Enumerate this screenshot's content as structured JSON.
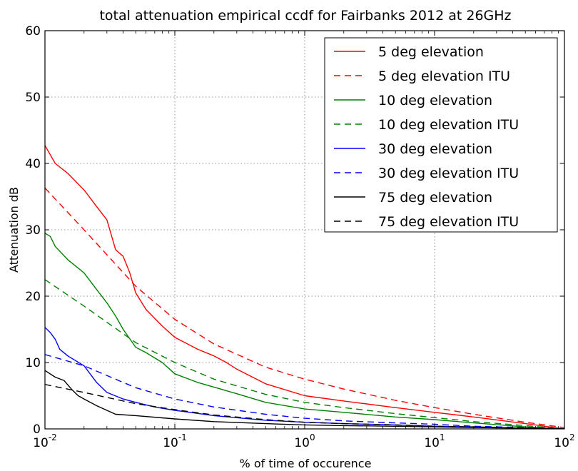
{
  "chart_data": {
    "type": "line",
    "title": "total attenuation empirical ccdf for Fairbanks 2012 at 26GHz",
    "xlabel": "% of time of occurence",
    "ylabel": "Attenuation dB",
    "xscale": "log",
    "xlim": [
      0.01,
      100
    ],
    "ylim": [
      0,
      60
    ],
    "grid": true,
    "legend_position": "top-right",
    "x_ticks": [
      {
        "value": 0.01,
        "base": "10",
        "exp": "-2"
      },
      {
        "value": 0.1,
        "base": "10",
        "exp": "-1"
      },
      {
        "value": 1,
        "base": "10",
        "exp": "0"
      },
      {
        "value": 10,
        "base": "10",
        "exp": "1"
      },
      {
        "value": 100,
        "base": "10",
        "exp": "2"
      }
    ],
    "y_ticks": [
      0,
      10,
      20,
      30,
      40,
      50,
      60
    ],
    "series": [
      {
        "name": "5 deg elevation",
        "color": "#ff0000",
        "dash": "solid",
        "x": [
          0.01,
          0.012,
          0.015,
          0.02,
          0.025,
          0.03,
          0.035,
          0.04,
          0.045,
          0.05,
          0.06,
          0.08,
          0.1,
          0.15,
          0.2,
          0.25,
          0.3,
          0.5,
          1,
          2,
          5,
          10,
          20,
          50,
          100
        ],
        "y": [
          42.7,
          40,
          38.5,
          36,
          33.5,
          31.5,
          27,
          26,
          23.5,
          20.5,
          18,
          15.5,
          13.8,
          12,
          11,
          10,
          9,
          6.8,
          5,
          4.2,
          3.2,
          2.5,
          1.8,
          0.8,
          0
        ]
      },
      {
        "name": "5 deg elevation ITU",
        "color": "#ff0000",
        "dash": "dashed",
        "x": [
          0.01,
          0.02,
          0.05,
          0.1,
          0.2,
          0.5,
          1,
          2,
          5,
          10,
          20,
          50,
          100
        ],
        "y": [
          36.3,
          30,
          21.5,
          16.5,
          12.8,
          9.3,
          7.5,
          6,
          4.3,
          3.2,
          2.2,
          1,
          0.2
        ]
      },
      {
        "name": "10 deg elevation",
        "color": "#008000",
        "dash": "solid",
        "x": [
          0.01,
          0.011,
          0.012,
          0.015,
          0.02,
          0.025,
          0.03,
          0.035,
          0.04,
          0.05,
          0.06,
          0.08,
          0.1,
          0.15,
          0.2,
          0.3,
          0.5,
          1,
          2,
          5,
          10,
          20,
          50,
          100
        ],
        "y": [
          29.5,
          29,
          27.5,
          25.5,
          23.5,
          21,
          19,
          17,
          15,
          12.3,
          11.5,
          10,
          8.3,
          7,
          6.3,
          5.3,
          4,
          3,
          2.5,
          1.8,
          1.4,
          0.9,
          0.3,
          0
        ]
      },
      {
        "name": "10 deg elevation ITU",
        "color": "#008000",
        "dash": "dashed",
        "x": [
          0.01,
          0.02,
          0.05,
          0.1,
          0.2,
          0.5,
          1,
          2,
          5,
          10,
          20,
          50,
          100
        ],
        "y": [
          22.5,
          18.5,
          13,
          10,
          7.5,
          5.2,
          4,
          3.2,
          2.3,
          1.7,
          1.1,
          0.5,
          0
        ]
      },
      {
        "name": "30 deg elevation",
        "color": "#0000ff",
        "dash": "solid",
        "x": [
          0.01,
          0.011,
          0.012,
          0.013,
          0.015,
          0.02,
          0.025,
          0.03,
          0.04,
          0.05,
          0.07,
          0.1,
          0.2,
          0.5,
          1,
          2,
          5,
          10,
          20,
          50,
          100
        ],
        "y": [
          15.3,
          14.5,
          13.5,
          12,
          11,
          9.5,
          7,
          5.5,
          4.5,
          4,
          3.3,
          2.8,
          2,
          1.3,
          1,
          0.8,
          0.6,
          0.4,
          0.3,
          0.1,
          0
        ]
      },
      {
        "name": "30 deg elevation ITU",
        "color": "#0000ff",
        "dash": "dashed",
        "x": [
          0.01,
          0.02,
          0.05,
          0.1,
          0.2,
          0.5,
          1,
          2,
          5,
          10,
          20,
          50,
          100
        ],
        "y": [
          11.2,
          9.5,
          6.2,
          4.5,
          3.3,
          2.2,
          1.6,
          1.2,
          0.9,
          0.7,
          0.4,
          0.2,
          0
        ]
      },
      {
        "name": "75 deg elevation",
        "color": "#000000",
        "dash": "solid",
        "x": [
          0.01,
          0.012,
          0.014,
          0.016,
          0.018,
          0.02,
          0.025,
          0.03,
          0.035,
          0.05,
          0.1,
          0.2,
          0.5,
          1,
          2,
          5,
          10,
          20,
          50,
          100
        ],
        "y": [
          8.8,
          7.8,
          7.3,
          6,
          5,
          4.5,
          3.5,
          2.8,
          2.2,
          2,
          1.5,
          1.1,
          0.8,
          0.6,
          0.5,
          0.4,
          0.3,
          0.2,
          0.1,
          0
        ]
      },
      {
        "name": "75 deg elevation ITU",
        "color": "#000000",
        "dash": "dashed",
        "x": [
          0.01,
          0.02,
          0.05,
          0.1,
          0.2,
          0.5,
          1,
          2,
          5,
          10,
          20,
          50,
          100
        ],
        "y": [
          6.7,
          5.5,
          3.8,
          2.9,
          2.1,
          1.4,
          1,
          0.8,
          0.6,
          0.4,
          0.3,
          0.1,
          0
        ]
      }
    ]
  }
}
